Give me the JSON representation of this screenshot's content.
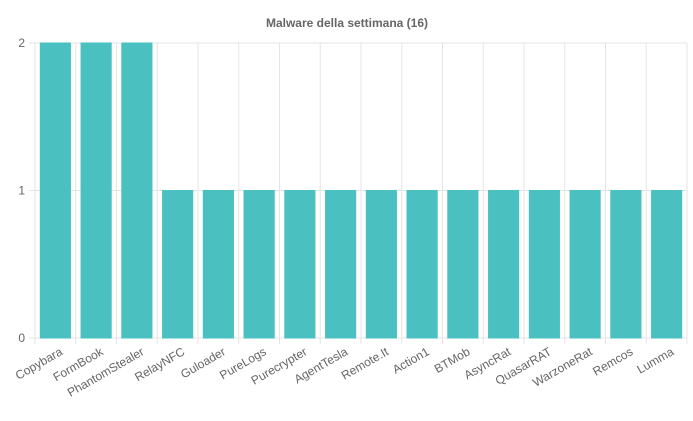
{
  "chart_data": {
    "type": "bar",
    "title": "Malware della settimana (16)",
    "xlabel": "",
    "ylabel": "",
    "categories": [
      "Copybara",
      "FormBook",
      "PhantomStealer",
      "RelayNFC",
      "Guloader",
      "PureLogs",
      "Purecrypter",
      "AgentTesla",
      "Remote.It",
      "Action1",
      "BTMob",
      "AsyncRat",
      "QuasarRAT",
      "WarzoneRat",
      "Remcos",
      "Lumma"
    ],
    "values": [
      2,
      2,
      2,
      1,
      1,
      1,
      1,
      1,
      1,
      1,
      1,
      1,
      1,
      1,
      1,
      1
    ],
    "ylim": [
      0,
      2
    ],
    "yticks": [
      "0",
      "1",
      "2"
    ],
    "grid": true,
    "legend": "none",
    "colors": {
      "bar": "#4BC0C0",
      "bar_border": "#4BC0C0",
      "grid": "#e5e5e5",
      "text": "#666666"
    }
  }
}
